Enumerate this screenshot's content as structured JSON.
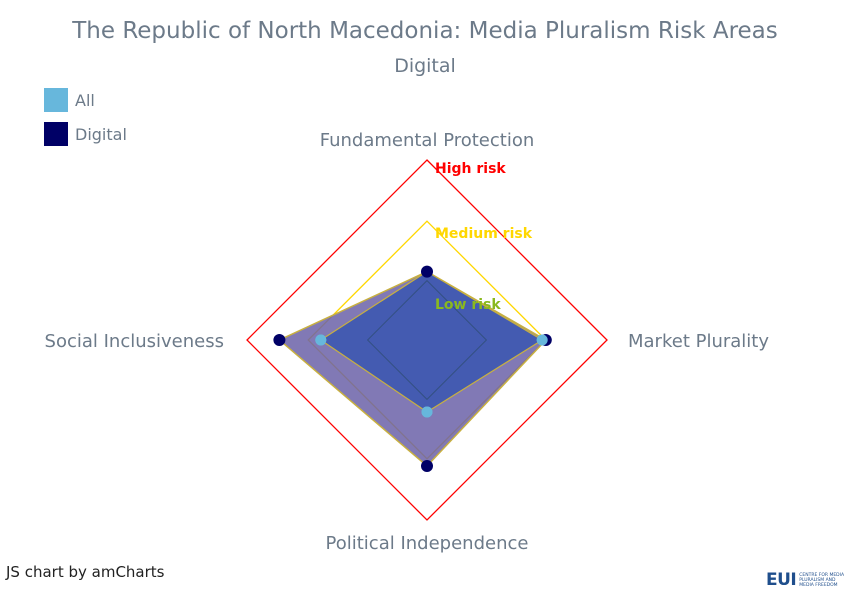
{
  "title": "The Republic of North Macedonia: Media Pluralism Risk Areas",
  "subtitle": "Digital",
  "legend": [
    {
      "label": "All",
      "color": "#67b7dc"
    },
    {
      "label": "Digital",
      "color": "#000066"
    }
  ],
  "credit": "JS chart by amCharts",
  "logo": {
    "mark": "EUI",
    "text": "CENTRE FOR MEDIA PLURALISM AND MEDIA FREEDOM"
  },
  "colors": {
    "high": "#ff0000",
    "medium": "#ffd700",
    "low": "#8ab91e",
    "fill": "#3a56b0",
    "digital_fill": "#6b62a8",
    "outline": "#c8b040"
  },
  "chart_data": {
    "type": "radar",
    "title": "The Republic of North Macedonia: Media Pluralism Risk Areas",
    "subtitle": "Digital",
    "axes": [
      "Fundamental Protection",
      "Market Plurality",
      "Political Independence",
      "Social Inclusiveness"
    ],
    "range": [
      0,
      100
    ],
    "bands": [
      {
        "label": "Low risk",
        "max": 33
      },
      {
        "label": "Medium risk",
        "max": 66
      },
      {
        "label": "High risk",
        "max": 100
      }
    ],
    "series": [
      {
        "name": "All",
        "values": [
          38,
          64,
          40,
          59
        ]
      },
      {
        "name": "Digital",
        "values": [
          38,
          66,
          70,
          82
        ]
      }
    ]
  }
}
